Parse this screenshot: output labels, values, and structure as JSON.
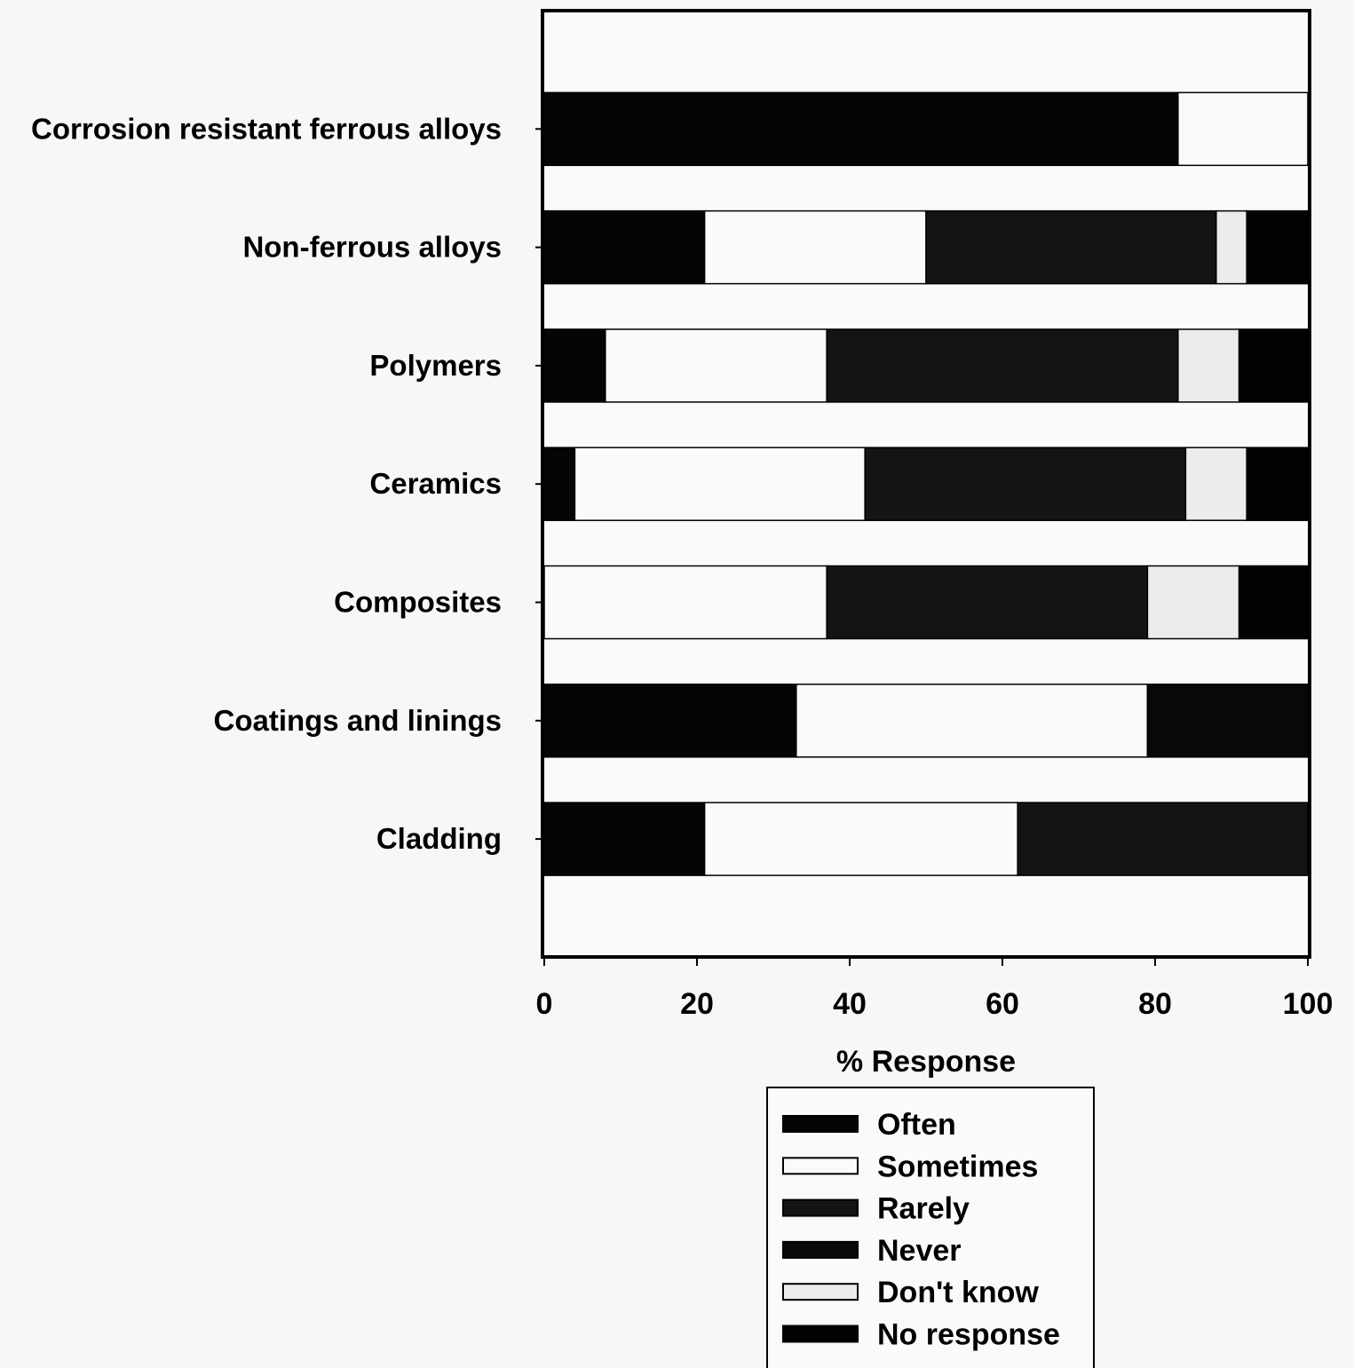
{
  "chart_data": {
    "type": "bar",
    "orientation": "horizontal",
    "stacked": true,
    "categories": [
      "Corrosion resistant ferrous alloys",
      "Non-ferrous alloys",
      "Polymers",
      "Ceramics",
      "Composites",
      "Coatings and linings",
      "Cladding"
    ],
    "series": [
      {
        "name": "Often",
        "color": "#050505",
        "values": [
          83,
          21,
          8,
          4,
          0,
          33,
          21
        ]
      },
      {
        "name": "Sometimes",
        "color": "#fafafa",
        "values": [
          17,
          29,
          29,
          38,
          37,
          46,
          41
        ]
      },
      {
        "name": "Rarely",
        "color": "#141414",
        "values": [
          0,
          38,
          46,
          42,
          42,
          0,
          38
        ]
      },
      {
        "name": "Never",
        "color": "#080808",
        "values": [
          0,
          0,
          0,
          0,
          0,
          21,
          0
        ]
      },
      {
        "name": "Don't know",
        "color": "#ececec",
        "values": [
          0,
          4,
          8,
          8,
          12,
          0,
          0
        ]
      },
      {
        "name": "No response",
        "color": "#020202",
        "values": [
          0,
          8,
          9,
          8,
          9,
          0,
          0
        ]
      }
    ],
    "xlabel": "% Response",
    "ylabel": "",
    "xlim": [
      0,
      100
    ],
    "xticks": [
      "0",
      "20",
      "40",
      "60",
      "80",
      "100"
    ],
    "legend_position": "bottom",
    "grid": false
  }
}
